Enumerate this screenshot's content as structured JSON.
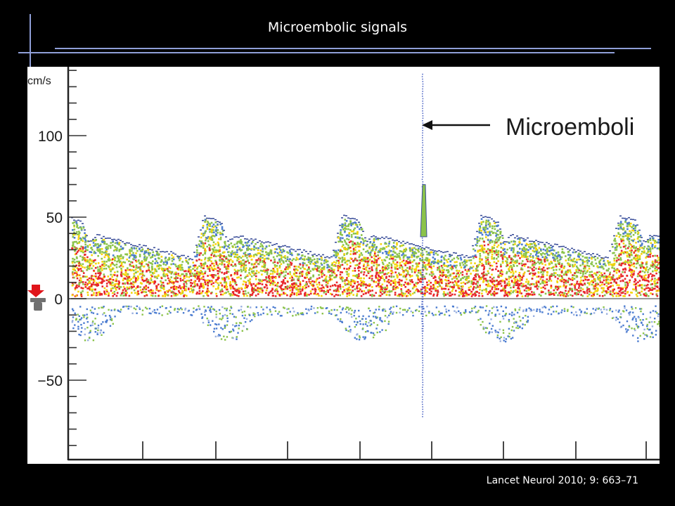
{
  "slide": {
    "title": "Microembolic signals",
    "citation": "Lancet Neurol 2010; 9: 663–71"
  },
  "chart_data": {
    "type": "spectral-doppler",
    "ylabel": "cm/s",
    "yticks": [
      "100",
      "50",
      "0",
      "−50"
    ],
    "ytick_values": [
      100,
      50,
      0,
      -50
    ],
    "ylim": [
      -95,
      140
    ],
    "annotation": "Microemboli",
    "marker_icon": "red-arrow-probe-icon",
    "colors": {
      "low": "#4a7bd0",
      "mid": "#8bc34a",
      "high": "#f5d50a",
      "peak": "#e8262a"
    }
  }
}
